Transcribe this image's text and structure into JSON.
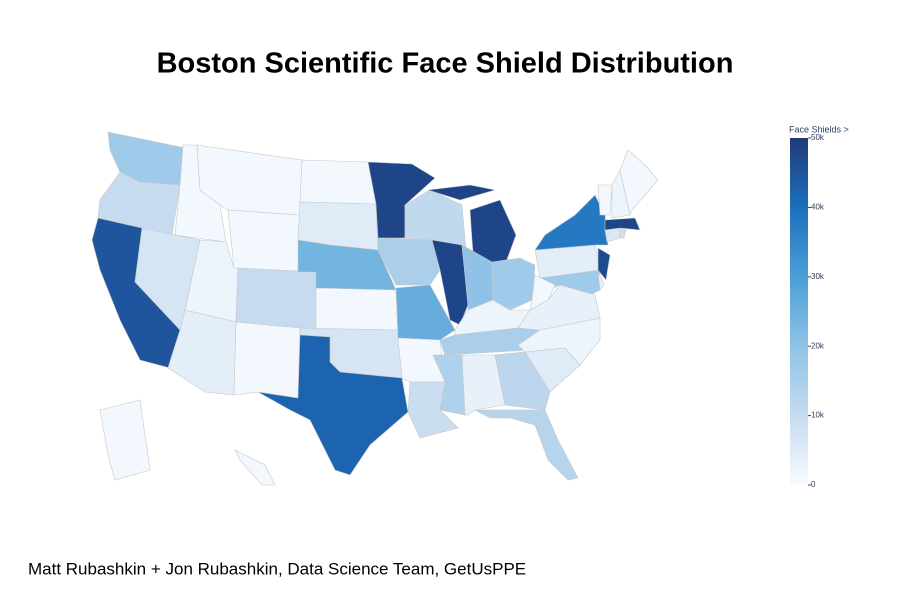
{
  "chart_data": {
    "type": "choropleth",
    "title": "Boston Scientific Face Shield Distribution",
    "caption": "Matt Rubashkin + Jon Rubashkin, Data Science Team, GetUsPPE",
    "colorbar_title": "Face Shields >",
    "values": [
      17000,
      10000,
      45000,
      7000,
      1000,
      1000,
      1000,
      2000,
      4000,
      10000,
      1000,
      1000,
      5000,
      24000,
      1000,
      7000,
      42000,
      48000,
      15000,
      26000,
      1000,
      9000,
      11000,
      48000,
      48000,
      20000,
      17000,
      2000,
      15000,
      14000,
      3000,
      12000,
      13000,
      5000,
      2000,
      3000,
      1000,
      4000,
      38000,
      47000,
      17000,
      3000,
      6000,
      8000,
      48000,
      1000,
      2000,
      1000,
      1000,
      1000
    ],
    "zlim": [
      0,
      50000
    ],
    "zticks": [
      0,
      {
        "value": 10000,
        "label": "10k"
      },
      {
        "value": 20000,
        "label": "20k"
      },
      {
        "value": 30000,
        "label": "30k"
      },
      {
        "value": 40000,
        "label": "40k"
      },
      {
        "value": 50000,
        "label": "50k"
      }
    ],
    "colorscale": [
      [
        0,
        "#f7fbff"
      ],
      [
        0.2,
        "#c6dbef"
      ],
      [
        0.4,
        "#8fc2e6"
      ],
      [
        0.6,
        "#4a9fd8"
      ],
      [
        0.8,
        "#1c6fbd"
      ],
      [
        1,
        "#1f3a7a"
      ]
    ]
  }
}
